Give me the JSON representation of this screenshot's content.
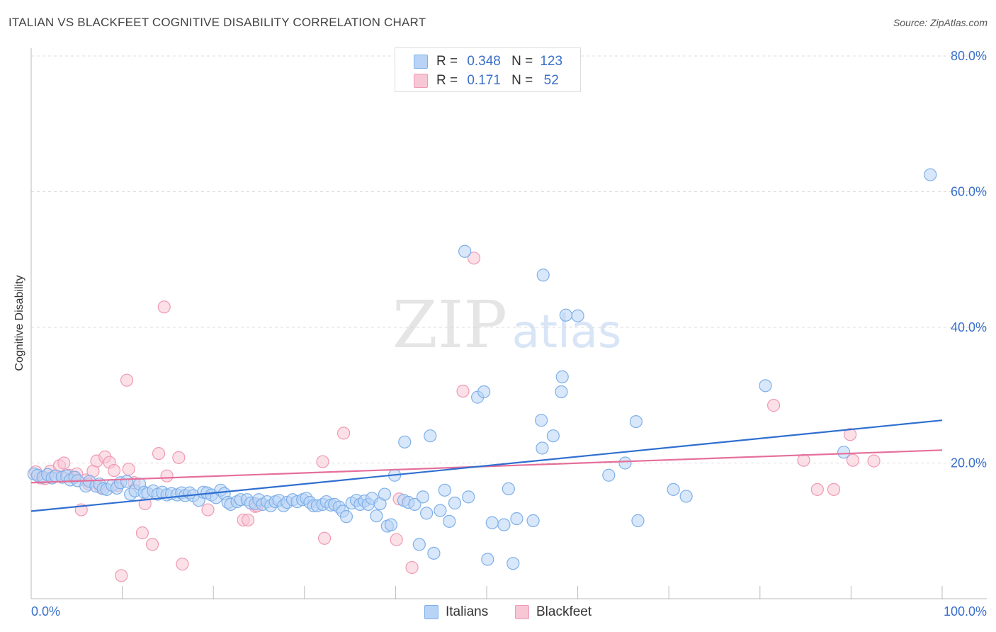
{
  "header": {
    "title": "ITALIAN VS BLACKFEET COGNITIVE DISABILITY CORRELATION CHART",
    "source": "Source: ZipAtlas.com"
  },
  "watermark": {
    "part1": "ZIP",
    "part2": "atlas"
  },
  "legend_top": {
    "rows": [
      {
        "r_label": "R =",
        "r_value": "0.348",
        "n_label": "N =",
        "n_value": "123",
        "color": "#4a7fd4"
      },
      {
        "r_label": "R =",
        "r_value": "0.171",
        "n_label": "N =",
        "n_value": "52",
        "color": "#e56f9b"
      }
    ]
  },
  "legend_bottom": {
    "italians": "Italians",
    "blackfeet": "Blackfeet"
  },
  "colors": {
    "italians_fill": "#b8d3f5",
    "italians_stroke": "#7fb0e8",
    "italians_line": "#2f6fd0",
    "blackfeet_fill": "#f8c7d6",
    "blackfeet_stroke": "#ef9ab4",
    "blackfeet_line": "#e56f9b",
    "tick_label": "#3a6fc9",
    "grid": "#dddddd"
  },
  "chart_data": {
    "type": "scatter",
    "xlabel": "",
    "ylabel": "Cognitive Disability",
    "xlim": [
      0,
      100
    ],
    "ylim": [
      0,
      80
    ],
    "x_tick_labels": [
      {
        "value": 0,
        "label": "0.0%"
      },
      {
        "value": 100,
        "label": "100.0%"
      }
    ],
    "x_minor_ticks": [
      10,
      20,
      30,
      40,
      50,
      60,
      70,
      80,
      90,
      100
    ],
    "y_ticks": [
      {
        "value": 20,
        "label": "20.0%"
      },
      {
        "value": 40,
        "label": "40.0%"
      },
      {
        "value": 60,
        "label": "60.0%"
      },
      {
        "value": 80,
        "label": "80.0%"
      }
    ],
    "grid": true,
    "series": [
      {
        "name": "Italians",
        "r": 0.348,
        "n": 123,
        "trendline": {
          "x": [
            0,
            100
          ],
          "y": [
            12.9,
            26.3
          ]
        },
        "points": [
          [
            0.3,
            18.4
          ],
          [
            0.7,
            18.2
          ],
          [
            1.3,
            17.9
          ],
          [
            1.8,
            18.3
          ],
          [
            2.3,
            17.8
          ],
          [
            2.7,
            18.1
          ],
          [
            3.4,
            17.9
          ],
          [
            3.9,
            18.1
          ],
          [
            4.3,
            17.5
          ],
          [
            4.8,
            17.9
          ],
          [
            5.1,
            17.4
          ],
          [
            6.0,
            16.6
          ],
          [
            6.4,
            17.3
          ],
          [
            7.1,
            16.6
          ],
          [
            7.5,
            16.9
          ],
          [
            7.9,
            16.2
          ],
          [
            8.3,
            16.1
          ],
          [
            8.9,
            16.7
          ],
          [
            9.4,
            16.3
          ],
          [
            9.8,
            17.1
          ],
          [
            10.5,
            17.3
          ],
          [
            10.9,
            15.4
          ],
          [
            11.4,
            15.9
          ],
          [
            11.9,
            16.9
          ],
          [
            12.4,
            15.7
          ],
          [
            12.8,
            15.5
          ],
          [
            13.4,
            15.9
          ],
          [
            13.9,
            15.4
          ],
          [
            14.4,
            15.7
          ],
          [
            14.9,
            15.3
          ],
          [
            15.4,
            15.5
          ],
          [
            16.0,
            15.3
          ],
          [
            16.5,
            15.6
          ],
          [
            16.9,
            15.2
          ],
          [
            17.4,
            15.6
          ],
          [
            17.8,
            15.2
          ],
          [
            18.4,
            14.5
          ],
          [
            18.9,
            15.7
          ],
          [
            19.3,
            15.6
          ],
          [
            19.8,
            15.3
          ],
          [
            20.3,
            14.9
          ],
          [
            20.8,
            16.0
          ],
          [
            21.2,
            15.5
          ],
          [
            21.6,
            14.2
          ],
          [
            21.9,
            13.9
          ],
          [
            22.6,
            14.3
          ],
          [
            23.0,
            14.6
          ],
          [
            23.7,
            14.6
          ],
          [
            24.1,
            14.1
          ],
          [
            24.6,
            14.0
          ],
          [
            25.0,
            14.6
          ],
          [
            25.4,
            13.9
          ],
          [
            25.9,
            14.3
          ],
          [
            26.3,
            13.7
          ],
          [
            26.8,
            14.3
          ],
          [
            27.2,
            14.5
          ],
          [
            27.7,
            13.7
          ],
          [
            28.1,
            14.2
          ],
          [
            28.7,
            14.6
          ],
          [
            29.2,
            14.3
          ],
          [
            29.8,
            14.6
          ],
          [
            30.2,
            14.8
          ],
          [
            30.6,
            14.2
          ],
          [
            31.0,
            13.7
          ],
          [
            31.4,
            13.7
          ],
          [
            32.0,
            13.9
          ],
          [
            32.4,
            14.3
          ],
          [
            32.9,
            13.8
          ],
          [
            33.3,
            13.9
          ],
          [
            33.8,
            13.5
          ],
          [
            34.2,
            12.9
          ],
          [
            34.6,
            12.1
          ],
          [
            35.2,
            14.1
          ],
          [
            35.7,
            14.5
          ],
          [
            36.1,
            13.9
          ],
          [
            36.6,
            14.4
          ],
          [
            37.0,
            13.9
          ],
          [
            37.4,
            14.8
          ],
          [
            37.9,
            12.2
          ],
          [
            38.3,
            14.0
          ],
          [
            38.8,
            15.4
          ],
          [
            39.1,
            10.7
          ],
          [
            39.5,
            10.9
          ],
          [
            39.9,
            18.2
          ],
          [
            41.0,
            23.1
          ],
          [
            40.9,
            14.5
          ],
          [
            41.4,
            14.2
          ],
          [
            42.1,
            13.9
          ],
          [
            42.6,
            8.0
          ],
          [
            43.0,
            15.0
          ],
          [
            43.4,
            12.6
          ],
          [
            43.8,
            24.0
          ],
          [
            44.2,
            6.7
          ],
          [
            44.9,
            13.0
          ],
          [
            45.4,
            16.0
          ],
          [
            45.9,
            11.4
          ],
          [
            46.5,
            14.1
          ],
          [
            48.0,
            15.0
          ],
          [
            49.0,
            29.7
          ],
          [
            49.7,
            30.5
          ],
          [
            50.1,
            5.8
          ],
          [
            50.6,
            11.2
          ],
          [
            51.9,
            10.9
          ],
          [
            52.4,
            16.2
          ],
          [
            52.9,
            5.2
          ],
          [
            53.3,
            11.8
          ],
          [
            55.1,
            11.5
          ],
          [
            63.4,
            18.2
          ],
          [
            65.2,
            20.0
          ],
          [
            70.5,
            16.1
          ],
          [
            71.9,
            15.1
          ],
          [
            89.2,
            21.6
          ],
          [
            98.7,
            62.5
          ],
          [
            47.6,
            51.2
          ],
          [
            56.2,
            47.7
          ],
          [
            60.0,
            41.7
          ],
          [
            58.7,
            41.8
          ],
          [
            58.3,
            32.7
          ],
          [
            58.2,
            30.5
          ],
          [
            56.0,
            26.3
          ],
          [
            56.1,
            22.2
          ],
          [
            57.3,
            24.0
          ],
          [
            66.4,
            26.1
          ],
          [
            66.6,
            11.5
          ],
          [
            80.6,
            31.4
          ]
        ]
      },
      {
        "name": "Blackfeet",
        "r": 0.171,
        "n": 52,
        "trendline": {
          "x": [
            0,
            100
          ],
          "y": [
            17.1,
            21.9
          ]
        },
        "points": [
          [
            0.5,
            18.7
          ],
          [
            1.0,
            17.8
          ],
          [
            1.5,
            17.7
          ],
          [
            2.1,
            18.8
          ],
          [
            2.6,
            18.1
          ],
          [
            3.1,
            19.6
          ],
          [
            3.6,
            20.0
          ],
          [
            4.1,
            18.2
          ],
          [
            4.6,
            17.9
          ],
          [
            5.0,
            18.4
          ],
          [
            5.5,
            13.1
          ],
          [
            6.0,
            17.5
          ],
          [
            6.3,
            16.9
          ],
          [
            6.8,
            18.8
          ],
          [
            7.2,
            20.3
          ],
          [
            7.6,
            16.4
          ],
          [
            8.1,
            20.9
          ],
          [
            8.6,
            20.1
          ],
          [
            9.1,
            18.9
          ],
          [
            9.5,
            16.7
          ],
          [
            9.9,
            3.4
          ],
          [
            10.7,
            19.1
          ],
          [
            10.5,
            32.2
          ],
          [
            11.3,
            17.1
          ],
          [
            12.5,
            14.0
          ],
          [
            12.2,
            9.7
          ],
          [
            13.3,
            8.0
          ],
          [
            14.0,
            21.4
          ],
          [
            14.6,
            43.0
          ],
          [
            14.9,
            18.1
          ],
          [
            16.2,
            20.8
          ],
          [
            16.6,
            5.1
          ],
          [
            19.4,
            13.1
          ],
          [
            23.3,
            11.6
          ],
          [
            23.8,
            11.6
          ],
          [
            24.6,
            13.6
          ],
          [
            24.8,
            13.7
          ],
          [
            32.0,
            20.2
          ],
          [
            32.2,
            8.9
          ],
          [
            34.3,
            24.4
          ],
          [
            40.1,
            8.7
          ],
          [
            40.4,
            14.7
          ],
          [
            41.8,
            4.6
          ],
          [
            47.4,
            30.6
          ],
          [
            48.6,
            50.2
          ],
          [
            81.5,
            28.5
          ],
          [
            84.8,
            20.4
          ],
          [
            86.3,
            16.1
          ],
          [
            88.1,
            16.1
          ],
          [
            89.9,
            24.2
          ],
          [
            90.2,
            20.4
          ],
          [
            92.5,
            20.3
          ]
        ]
      }
    ]
  }
}
